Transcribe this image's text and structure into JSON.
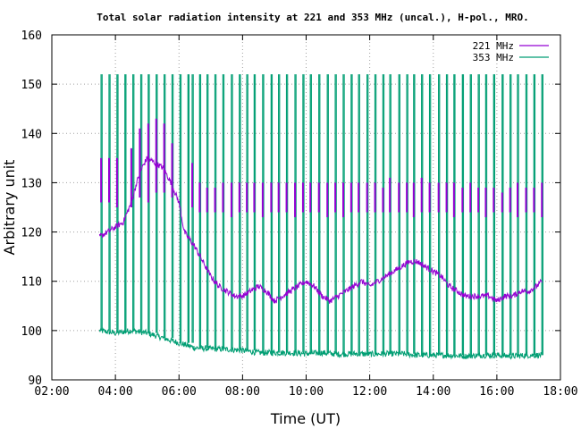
{
  "chart_data": {
    "type": "line",
    "title": "Total solar radiation intensity at 221 and 353 MHz (uncal.), H-pol., MRO.",
    "xlabel": "Time (UT)",
    "ylabel": "Arbitrary unit",
    "xlim": [
      "02:00",
      "18:00"
    ],
    "ylim": [
      90,
      160
    ],
    "x_ticks": [
      "02:00",
      "04:00",
      "06:00",
      "08:00",
      "10:00",
      "12:00",
      "14:00",
      "16:00",
      "18:00"
    ],
    "y_ticks": [
      "90",
      "100",
      "110",
      "120",
      "130",
      "140",
      "150",
      "160"
    ],
    "grid": true,
    "legend_position": "top-right",
    "series": [
      {
        "name": "221 MHz",
        "color": "#9400d3",
        "x": [
          "03:30",
          "03:45",
          "04:00",
          "04:15",
          "04:30",
          "04:40",
          "04:50",
          "05:00",
          "05:15",
          "05:30",
          "05:45",
          "06:00",
          "06:10",
          "06:30",
          "06:45",
          "07:00",
          "07:15",
          "07:30",
          "07:45",
          "08:00",
          "08:15",
          "08:30",
          "08:45",
          "09:00",
          "09:15",
          "09:30",
          "09:45",
          "10:00",
          "10:15",
          "10:30",
          "10:45",
          "11:00",
          "11:15",
          "11:30",
          "11:45",
          "12:00",
          "12:15",
          "12:30",
          "12:45",
          "13:00",
          "13:15",
          "13:30",
          "13:45",
          "14:00",
          "14:15",
          "14:30",
          "14:45",
          "15:00",
          "15:15",
          "15:30",
          "15:45",
          "16:00",
          "16:15",
          "16:30",
          "16:45",
          "17:00",
          "17:15",
          "17:25"
        ],
        "values": [
          119,
          120,
          121,
          122,
          126,
          130,
          133,
          135,
          134,
          133,
          130,
          126,
          120,
          117,
          114,
          111,
          109,
          108,
          107,
          107,
          108,
          109,
          108,
          106,
          107,
          108,
          109,
          110,
          109,
          107,
          106,
          107,
          108,
          109,
          110,
          109,
          110,
          111,
          112,
          113,
          114,
          114,
          113,
          112,
          111,
          109,
          108,
          107,
          107,
          107,
          107,
          106,
          107,
          107,
          108,
          108,
          109,
          110
        ],
        "burst_times": [
          "03:33",
          "03:48",
          "04:03",
          "04:30",
          "04:46",
          "05:02",
          "05:17",
          "05:32",
          "05:47",
          "06:25",
          "06:39",
          "06:53",
          "07:08",
          "07:23",
          "07:39",
          "07:54",
          "08:08",
          "08:22",
          "08:38",
          "08:54",
          "09:08",
          "09:23",
          "09:39",
          "09:54",
          "10:08",
          "10:24",
          "10:40",
          "10:55",
          "11:10",
          "11:25",
          "11:39",
          "11:55",
          "12:10",
          "12:25",
          "12:38",
          "12:55",
          "13:10",
          "13:23",
          "13:38",
          "13:53",
          "14:10",
          "14:25",
          "14:39",
          "14:55",
          "15:10",
          "15:25",
          "15:39",
          "15:54",
          "16:10",
          "16:25",
          "16:39",
          "16:55",
          "17:10",
          "17:25"
        ],
        "burst_top": [
          135,
          135,
          135,
          137,
          141,
          142,
          143,
          142,
          138,
          134,
          130,
          129,
          129,
          130,
          130,
          130,
          130,
          130,
          130,
          130,
          130,
          130,
          130,
          130,
          130,
          130,
          130,
          130,
          130,
          130,
          130,
          130,
          130,
          129,
          131,
          130,
          130,
          130,
          131,
          130,
          130,
          130,
          130,
          129,
          130,
          129,
          129,
          129,
          128,
          129,
          130,
          129,
          129,
          130
        ],
        "burst_low": [
          126,
          126,
          125,
          125,
          127,
          126,
          128,
          128,
          127,
          125,
          124,
          124,
          124,
          124,
          123,
          124,
          124,
          124,
          123,
          124,
          124,
          124,
          123,
          124,
          124,
          124,
          123,
          124,
          123,
          124,
          124,
          124,
          124,
          124,
          124,
          124,
          124,
          123,
          124,
          124,
          124,
          124,
          123,
          124,
          124,
          124,
          123,
          124,
          124,
          124,
          123,
          124,
          124,
          123
        ]
      },
      {
        "name": "353 MHz",
        "color": "#009e73",
        "x": [
          "03:30",
          "04:00",
          "04:30",
          "05:00",
          "05:30",
          "06:00",
          "06:30",
          "07:00",
          "07:30",
          "08:00",
          "08:30",
          "09:00",
          "09:30",
          "10:00",
          "10:30",
          "11:00",
          "11:30",
          "12:00",
          "12:30",
          "13:00",
          "13:30",
          "14:00",
          "14:30",
          "15:00",
          "15:30",
          "16:00",
          "16:30",
          "17:00",
          "17:25"
        ],
        "values": [
          100,
          99.5,
          100,
          99.5,
          98.5,
          97.5,
          96.5,
          96.3,
          96.2,
          96,
          95.5,
          95.5,
          95.5,
          95.3,
          95.5,
          95.2,
          95.3,
          95.2,
          95.3,
          95.3,
          95,
          95,
          95,
          94.8,
          95,
          95,
          94.8,
          95,
          95
        ],
        "spike_top": 152,
        "spike_times": [
          "03:33",
          "03:48",
          "04:03",
          "04:18",
          "04:33",
          "04:48",
          "05:02",
          "05:17",
          "05:32",
          "05:47",
          "06:02",
          "06:17",
          "06:25",
          "06:39",
          "06:53",
          "07:08",
          "07:23",
          "07:39",
          "07:54",
          "08:08",
          "08:22",
          "08:38",
          "08:54",
          "09:08",
          "09:23",
          "09:39",
          "09:54",
          "10:08",
          "10:24",
          "10:40",
          "10:55",
          "11:10",
          "11:25",
          "11:39",
          "11:55",
          "12:10",
          "12:25",
          "12:38",
          "12:55",
          "13:10",
          "13:23",
          "13:38",
          "13:53",
          "14:10",
          "14:25",
          "14:39",
          "14:55",
          "15:10",
          "15:25",
          "15:39",
          "15:54",
          "16:10",
          "16:25",
          "16:39",
          "16:55",
          "17:10",
          "17:25"
        ]
      }
    ]
  }
}
